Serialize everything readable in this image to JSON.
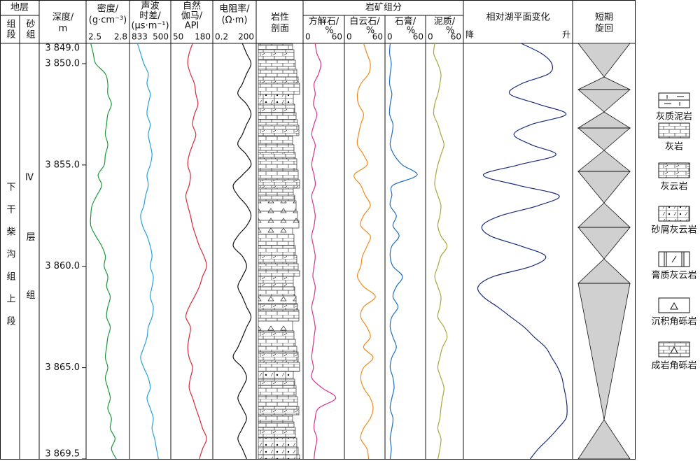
{
  "strata": {
    "title": "地层",
    "formation": "组段",
    "sand_group": "砂组",
    "formation_name": "下干柴沟组上段",
    "sand_group_name": "Ⅳ层组"
  },
  "depth": {
    "title": [
      "深度/",
      "m"
    ],
    "lim": [
      3849,
      3869.5
    ],
    "ticks": [
      {
        "value": 3849,
        "label": "3 849.0"
      },
      {
        "value": 3850,
        "label": "3 850.0"
      },
      {
        "value": 3855,
        "label": "3 855.0"
      },
      {
        "value": 3860,
        "label": "3 860.0"
      },
      {
        "value": 3865,
        "label": "3 865.0"
      },
      {
        "value": 3869.5,
        "label": "3 869.5"
      }
    ]
  },
  "samples": [
    3849,
    3849.5,
    3850,
    3850.5,
    3851,
    3851.5,
    3852,
    3852.5,
    3853,
    3853.5,
    3854,
    3854.5,
    3855,
    3855.5,
    3856,
    3856.5,
    3857,
    3857.5,
    3858,
    3858.5,
    3859,
    3859.5,
    3860,
    3860.5,
    3861,
    3861.5,
    3862,
    3862.5,
    3863,
    3863.5,
    3864,
    3864.5,
    3865,
    3865.5,
    3866,
    3866.5,
    3867,
    3867.5,
    3868,
    3868.5,
    3869,
    3869.5
  ],
  "lithology": {
    "title": [
      "岩性",
      "剖面"
    ]
  },
  "mineral_group": "岩矿组分",
  "tracks": [
    {
      "title": [
        "密度/",
        "(g·cm⁻³)"
      ],
      "xlim": [
        2.5,
        2.8
      ],
      "xticks": [
        2.5,
        2.8
      ],
      "color": "#1a9a3a",
      "values": [
        2.51,
        2.53,
        2.55,
        2.63,
        2.65,
        2.65,
        2.68,
        2.65,
        2.64,
        2.63,
        2.65,
        2.63,
        2.62,
        2.57,
        2.6,
        2.56,
        2.52,
        2.51,
        2.51,
        2.55,
        2.6,
        2.63,
        2.62,
        2.65,
        2.64,
        2.67,
        2.65,
        2.64,
        2.67,
        2.65,
        2.64,
        2.63,
        2.65,
        2.63,
        2.65,
        2.67,
        2.65,
        2.68,
        2.67,
        2.71,
        2.68,
        2.72
      ]
    },
    {
      "title": [
        "声波",
        "时差/",
        "(μs·m⁻¹)"
      ],
      "xlim": [
        833,
        500
      ],
      "xticks": [
        833,
        500
      ],
      "color": "#2a9fd8",
      "values": [
        790,
        759,
        728,
        685,
        697,
        666,
        685,
        697,
        666,
        685,
        666,
        648,
        666,
        697,
        685,
        710,
        728,
        759,
        740,
        697,
        666,
        648,
        666,
        636,
        648,
        666,
        636,
        648,
        685,
        697,
        728,
        759,
        728,
        685,
        666,
        697,
        666,
        636,
        648,
        623,
        605,
        586
      ]
    },
    {
      "title": [
        "自然",
        "伽马/",
        "API"
      ],
      "xlim": [
        50,
        180
      ],
      "xticks": [
        50,
        180
      ],
      "color": "#d42a3a",
      "values": [
        118,
        105,
        100,
        110,
        125,
        130,
        138,
        125,
        118,
        130,
        118,
        105,
        100,
        110,
        105,
        93,
        100,
        110,
        118,
        130,
        143,
        160,
        170,
        155,
        143,
        125,
        105,
        93,
        110,
        105,
        100,
        105,
        118,
        110,
        105,
        118,
        130,
        143,
        155,
        170,
        155,
        143
      ]
    },
    {
      "title": [
        "电阻率/",
        "(Ω·m)"
      ],
      "xlim": [
        0.2,
        200
      ],
      "xticks": [
        0.2,
        200
      ],
      "xscale": "log",
      "color": "#111111",
      "values": [
        28,
        63,
        145,
        63,
        28,
        12,
        63,
        145,
        63,
        28,
        12,
        63,
        145,
        28,
        5,
        12,
        63,
        145,
        63,
        12,
        5,
        28,
        63,
        28,
        12,
        28,
        63,
        145,
        63,
        28,
        12,
        5,
        28,
        63,
        28,
        12,
        28,
        63,
        28,
        12,
        28,
        63
      ]
    },
    {
      "title": [
        "方解石/",
        "%"
      ],
      "group": true,
      "xlim": [
        0,
        60
      ],
      "xticks": [
        0,
        60
      ],
      "color": "#d6338a",
      "values": [
        15,
        18,
        25,
        21,
        13,
        15,
        12,
        18,
        13,
        9,
        15,
        12,
        9,
        13,
        15,
        9,
        12,
        15,
        13,
        9,
        12,
        15,
        13,
        11,
        15,
        13,
        9,
        12,
        15,
        13,
        11,
        9,
        12,
        9,
        27,
        51,
        21,
        15,
        13,
        18,
        15,
        13
      ]
    },
    {
      "title": [
        "白云石/",
        "%"
      ],
      "group": true,
      "xlim": [
        0,
        60
      ],
      "xticks": [
        0,
        60
      ],
      "color": "#f08a1c",
      "values": [
        28,
        34,
        40,
        37,
        23,
        17,
        19,
        28,
        23,
        19,
        17,
        28,
        34,
        11,
        23,
        31,
        40,
        28,
        23,
        40,
        34,
        26,
        23,
        17,
        28,
        49,
        28,
        23,
        34,
        40,
        28,
        45,
        28,
        23,
        28,
        40,
        45,
        40,
        28,
        23,
        34,
        37
      ]
    },
    {
      "title": [
        "石膏/",
        "%"
      ],
      "group": true,
      "xlim": [
        0,
        60
      ],
      "xticks": [
        0,
        60
      ],
      "color": "#1e6fc0",
      "values": [
        3,
        2,
        5,
        3,
        2,
        6,
        3,
        2,
        8,
        6,
        3,
        10,
        25,
        51,
        8,
        6,
        3,
        14,
        8,
        19,
        6,
        3,
        8,
        25,
        14,
        8,
        17,
        6,
        3,
        8,
        14,
        6,
        3,
        8,
        10,
        6,
        3,
        8,
        6,
        3,
        5,
        3
      ]
    },
    {
      "title": [
        "泥质/",
        "%"
      ],
      "group": true,
      "xlim": [
        0,
        60
      ],
      "xticks": [
        0,
        60
      ],
      "color": "#a5a83a",
      "values": [
        11,
        9,
        17,
        23,
        21,
        17,
        11,
        9,
        17,
        23,
        29,
        23,
        17,
        13,
        11,
        17,
        23,
        21,
        17,
        23,
        35,
        23,
        17,
        11,
        17,
        23,
        21,
        17,
        29,
        35,
        26,
        21,
        17,
        23,
        29,
        26,
        23,
        21,
        17,
        23,
        21,
        17
      ]
    },
    {
      "title": [
        "相对湖平面变化"
      ],
      "xlim": [
        0,
        100
      ],
      "xticks": [
        {
          "value": 0,
          "label": "降"
        },
        {
          "value": 100,
          "label": "升"
        }
      ],
      "color": "#1a2a7a",
      "values": [
        53,
        73,
        83,
        80,
        53,
        42,
        70,
        97,
        63,
        46,
        63,
        87,
        50,
        16,
        50,
        90,
        70,
        33,
        15,
        23,
        53,
        77,
        63,
        26,
        11,
        16,
        30,
        43,
        56,
        66,
        77,
        83,
        89,
        93,
        95,
        97,
        98,
        97,
        89,
        80,
        70,
        62
      ]
    }
  ],
  "cycle": {
    "title": [
      "短期",
      "旋回"
    ]
  },
  "legend": [
    "灰质泥岩",
    "灰岩",
    "灰云岩",
    "砂屑灰云岩",
    "膏质灰云岩",
    "沉积角砾岩",
    "成岩角砾岩"
  ]
}
